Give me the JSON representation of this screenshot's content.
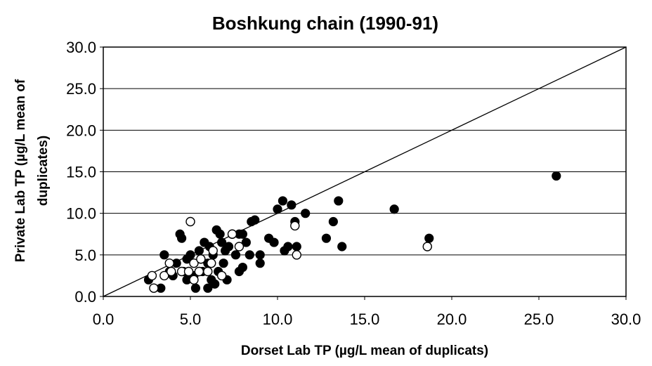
{
  "chart_data": {
    "type": "scatter",
    "title": "Boshkung chain (1990-91)",
    "xlabel": "Dorset Lab TP (µg/L mean of duplicats)",
    "ylabel_lines": [
      "Private Lab TP (µg/L mean of",
      "duplicates)"
    ],
    "xlim": [
      0,
      30
    ],
    "ylim": [
      0,
      30
    ],
    "x_ticks": [
      "0.0",
      "5.0",
      "10.0",
      "15.0",
      "20.0",
      "25.0",
      "30.0"
    ],
    "y_ticks": [
      "0.0",
      "5.0",
      "10.0",
      "15.0",
      "20.0",
      "25.0",
      "30.0"
    ],
    "grid": "horizontal",
    "reference_line": {
      "type": "1:1",
      "from": [
        0,
        0
      ],
      "to": [
        30,
        30
      ]
    },
    "series": [
      {
        "marker": "filled-circle",
        "color": "#000000",
        "points": [
          [
            2.6,
            2.0
          ],
          [
            3.3,
            1.0
          ],
          [
            3.5,
            5.0
          ],
          [
            3.8,
            3.0
          ],
          [
            4.0,
            2.5
          ],
          [
            4.2,
            4.0
          ],
          [
            4.4,
            7.5
          ],
          [
            4.5,
            7.0
          ],
          [
            4.6,
            3.0
          ],
          [
            4.8,
            2.0
          ],
          [
            4.8,
            4.5
          ],
          [
            5.0,
            5.0
          ],
          [
            5.2,
            2.5
          ],
          [
            5.3,
            1.0
          ],
          [
            5.5,
            5.5
          ],
          [
            5.7,
            3.0
          ],
          [
            5.8,
            6.5
          ],
          [
            6.0,
            1.0
          ],
          [
            6.0,
            4.0
          ],
          [
            6.1,
            6.0
          ],
          [
            6.2,
            2.0
          ],
          [
            6.3,
            5.0
          ],
          [
            6.4,
            1.5
          ],
          [
            6.5,
            8.0
          ],
          [
            6.6,
            3.0
          ],
          [
            6.7,
            7.5
          ],
          [
            6.8,
            6.5
          ],
          [
            6.9,
            4.0
          ],
          [
            7.0,
            5.5
          ],
          [
            7.1,
            2.0
          ],
          [
            7.2,
            6.0
          ],
          [
            7.4,
            7.5
          ],
          [
            7.6,
            5.0
          ],
          [
            7.8,
            7.5
          ],
          [
            7.8,
            3.0
          ],
          [
            8.0,
            3.5
          ],
          [
            8.0,
            7.5
          ],
          [
            8.2,
            6.5
          ],
          [
            8.4,
            5.0
          ],
          [
            8.5,
            9.0
          ],
          [
            8.7,
            9.2
          ],
          [
            9.0,
            5.0
          ],
          [
            9.0,
            4.0
          ],
          [
            9.5,
            7.0
          ],
          [
            9.8,
            6.5
          ],
          [
            10.0,
            10.5
          ],
          [
            10.3,
            11.5
          ],
          [
            10.4,
            5.5
          ],
          [
            10.6,
            6.0
          ],
          [
            10.8,
            11.0
          ],
          [
            11.0,
            9.0
          ],
          [
            11.1,
            6.0
          ],
          [
            11.6,
            10.0
          ],
          [
            12.8,
            7.0
          ],
          [
            13.2,
            9.0
          ],
          [
            13.5,
            11.5
          ],
          [
            13.7,
            6.0
          ],
          [
            16.7,
            10.5
          ],
          [
            18.7,
            7.0
          ],
          [
            26.0,
            14.5
          ]
        ]
      },
      {
        "marker": "open-circle",
        "color": "#000000",
        "points": [
          [
            2.8,
            2.5
          ],
          [
            2.9,
            1.0
          ],
          [
            3.5,
            2.5
          ],
          [
            3.8,
            4.0
          ],
          [
            3.9,
            3.0
          ],
          [
            4.5,
            3.0
          ],
          [
            4.9,
            3.0
          ],
          [
            5.0,
            9.0
          ],
          [
            5.2,
            2.0
          ],
          [
            5.2,
            4.0
          ],
          [
            5.5,
            3.0
          ],
          [
            5.6,
            4.5
          ],
          [
            6.0,
            3.0
          ],
          [
            6.2,
            4.0
          ],
          [
            6.3,
            5.5
          ],
          [
            6.8,
            2.5
          ],
          [
            7.4,
            7.5
          ],
          [
            7.8,
            6.0
          ],
          [
            11.0,
            8.5
          ],
          [
            11.1,
            5.0
          ],
          [
            18.6,
            6.0
          ]
        ]
      }
    ]
  }
}
